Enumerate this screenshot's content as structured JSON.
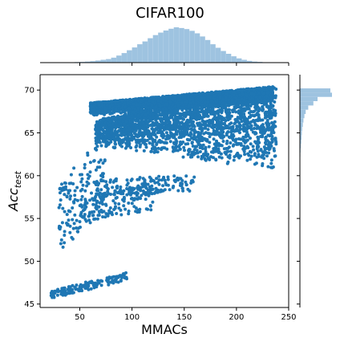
{
  "chart_data": {
    "type": "scatter",
    "title": "CIFAR100",
    "xlabel": "MMACs",
    "ylabel": {
      "base": "Acc",
      "sub": "test"
    },
    "xlim": [
      12,
      250
    ],
    "ylim": [
      44.6,
      71.8
    ],
    "xticks": [
      50,
      100,
      150,
      200,
      250
    ],
    "yticks": [
      45,
      50,
      55,
      60,
      65,
      70
    ],
    "point_color": "#1f77b4",
    "hist_color": "#9ec3e0",
    "grid": false,
    "marginal_histograms": true,
    "point_groups": [
      {
        "name": "main-cluster",
        "x_range": [
          65,
          238
        ],
        "y_bottom": [
          63.5,
          60.5
        ],
        "y_top": [
          66.5,
          70.5
        ],
        "dense": true
      },
      {
        "name": "upper-band",
        "x_range": [
          60,
          235
        ],
        "y_bottom": [
          67,
          68.5
        ],
        "y_top": [
          68.5,
          70.4
        ],
        "dense": true
      },
      {
        "name": "lower-band",
        "x_range": [
          50,
          120
        ],
        "y_bottom": [
          54.5,
          56
        ],
        "y_top": [
          57.5,
          59
        ],
        "dense": false
      },
      {
        "name": "mid-band",
        "x_range": [
          65,
          160
        ],
        "y_bottom": [
          57.5,
          58.2
        ],
        "y_top": [
          59.5,
          60.2
        ],
        "dense": false
      },
      {
        "name": "left-scatter",
        "x_range": [
          30,
          75
        ],
        "y_bottom": [
          51,
          56
        ],
        "y_top": [
          59,
          66
        ],
        "dense": false
      },
      {
        "name": "bottom-tail",
        "x_range": [
          22,
          95
        ],
        "y_bottom": [
          45.5,
          47.8
        ],
        "y_top": [
          46.5,
          48.8
        ],
        "dense": false
      }
    ],
    "marginal_x": {
      "bins_x": [
        30,
        35,
        40,
        45,
        50,
        55,
        60,
        65,
        70,
        75,
        80,
        85,
        90,
        95,
        100,
        105,
        110,
        115,
        120,
        125,
        130,
        135,
        140,
        145,
        150,
        155,
        160,
        165,
        170,
        175,
        180,
        185,
        190,
        195,
        200,
        205,
        210,
        215,
        220,
        225,
        230,
        235
      ],
      "heights": [
        0.005,
        0.008,
        0.01,
        0.015,
        0.02,
        0.03,
        0.04,
        0.06,
        0.08,
        0.1,
        0.14,
        0.2,
        0.27,
        0.35,
        0.43,
        0.52,
        0.6,
        0.69,
        0.78,
        0.85,
        0.91,
        0.96,
        1.0,
        0.98,
        0.95,
        0.9,
        0.83,
        0.74,
        0.64,
        0.52,
        0.42,
        0.33,
        0.25,
        0.18,
        0.12,
        0.08,
        0.05,
        0.03,
        0.02,
        0.01,
        0.005,
        0.003
      ]
    },
    "marginal_y": {
      "bins_y": [
        70.2,
        69.7,
        69.2,
        68.7,
        68.2,
        67.7,
        67.2,
        66.7,
        66.2,
        65.7,
        65.2,
        64.7,
        64.2,
        63.7,
        63.2,
        62.7,
        62.2
      ],
      "widths": [
        0.95,
        1.0,
        0.55,
        0.42,
        0.26,
        0.18,
        0.14,
        0.11,
        0.09,
        0.07,
        0.06,
        0.05,
        0.04,
        0.03,
        0.02,
        0.015,
        0.01
      ]
    }
  }
}
